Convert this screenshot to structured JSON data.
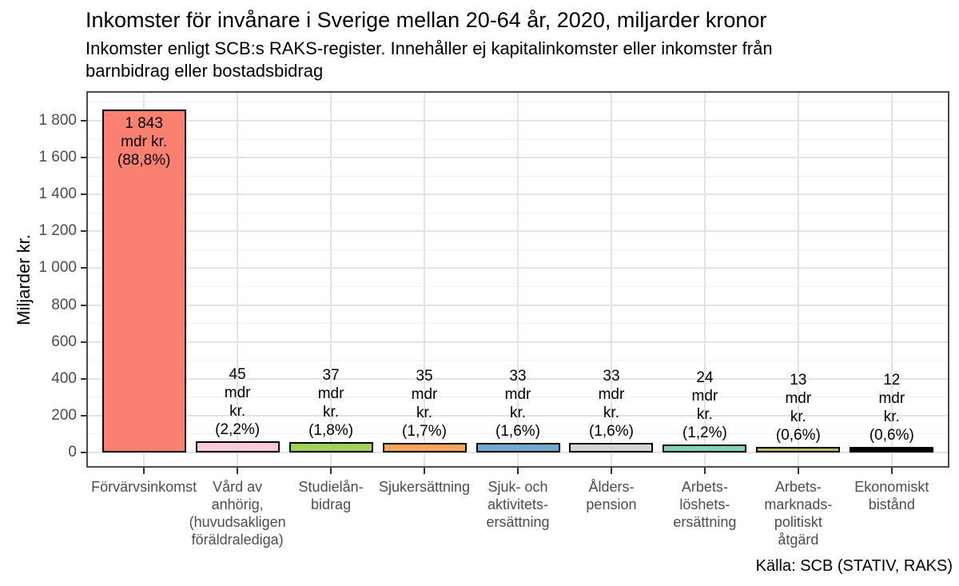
{
  "header": {
    "title": "Inkomster för invånare i Sverige mellan 20-64 år, 2020, miljarder kronor",
    "subtitle_lines": [
      "Inkomster enligt SCB:s RAKS-register. Innehåller ej kapitalinkomster eller inkomster från",
      "barnbidrag eller bostadsbidrag"
    ]
  },
  "chart_data": {
    "type": "bar",
    "title": "Inkomster för invånare i Sverige mellan 20-64 år, 2020, miljarder kronor",
    "subtitle": "Inkomster enligt SCB:s RAKS-register. Innehåller ej kapitalinkomster eller inkomster från barnbidrag eller bostadsbidrag",
    "caption": "Källa: SCB (STATIV, RAKS)",
    "xlabel": "",
    "ylabel": "Miljarder kr.",
    "ylim": [
      0,
      1960
    ],
    "grid": "horizontal major+minor, vertical major at category centers",
    "legend": "none",
    "categories": [
      "Förvärvsinkomst",
      "Vård av anhörig, (huvudsakligen föräldralediga)",
      "Studielån-bidrag",
      "Sjukersättning",
      "Sjuk- och aktivitetsersättning",
      "Ålderspension",
      "Arbetslöshetsersättning",
      "Arbetsmarknadspolitiskt åtgärd",
      "Ekonomiskt bistånd"
    ],
    "category_label_lines": [
      [
        "Förvärvsinkomst"
      ],
      [
        "Vård av",
        "anhörig,",
        "(huvudsakligen",
        "föräldralediga)"
      ],
      [
        "Studielån-",
        "bidrag"
      ],
      [
        "Sjukersättning"
      ],
      [
        "Sjuk- och",
        "aktivitets-",
        "ersättning"
      ],
      [
        "Ålders-",
        "pension"
      ],
      [
        "Arbets-",
        "löshets-",
        "ersättning"
      ],
      [
        "Arbets-",
        "marknads-",
        "politiskt",
        "åtgärd"
      ],
      [
        "Ekonomiskt",
        "bistånd"
      ]
    ],
    "values": [
      1843,
      45,
      37,
      35,
      33,
      33,
      24,
      13,
      12
    ],
    "percentages": [
      "88,8%",
      "2,2%",
      "1,8%",
      "1,7%",
      "1,6%",
      "1,6%",
      "1,2%",
      "0,6%",
      "0,6%"
    ],
    "bar_label_lines": [
      [
        "1 843",
        "mdr kr.",
        "(88,8%)"
      ],
      [
        "45",
        "mdr",
        "kr.",
        "(2,2%)"
      ],
      [
        "37",
        "mdr",
        "kr.",
        "(1,8%)"
      ],
      [
        "35",
        "mdr",
        "kr.",
        "(1,7%)"
      ],
      [
        "33",
        "mdr",
        "kr.",
        "(1,6%)"
      ],
      [
        "33",
        "mdr",
        "kr.",
        "(1,6%)"
      ],
      [
        "24",
        "mdr",
        "kr.",
        "(1,2%)"
      ],
      [
        "13",
        "mdr",
        "kr.",
        "(0,6%)"
      ],
      [
        "12",
        "mdr",
        "kr.",
        "(0,6%)"
      ]
    ],
    "bar_colors": [
      "#FA8072",
      "#F8C8DF",
      "#A1D05C",
      "#F8A55C",
      "#73A8CF",
      "#D4D4D4",
      "#7DD3C0",
      "#BDB76B",
      "#000000"
    ],
    "bar_border_color": "#000000",
    "yticks": {
      "values": [
        0,
        200,
        400,
        600,
        800,
        1000,
        1200,
        1400,
        1600,
        1800
      ],
      "labels": [
        "0",
        "200",
        "400",
        "600",
        "800",
        "1 000",
        "1 200",
        "1 400",
        "1 600",
        "1 800"
      ]
    },
    "grid_major_color": "#e3e3e3",
    "grid_minor_color": "#f0f0f0"
  }
}
